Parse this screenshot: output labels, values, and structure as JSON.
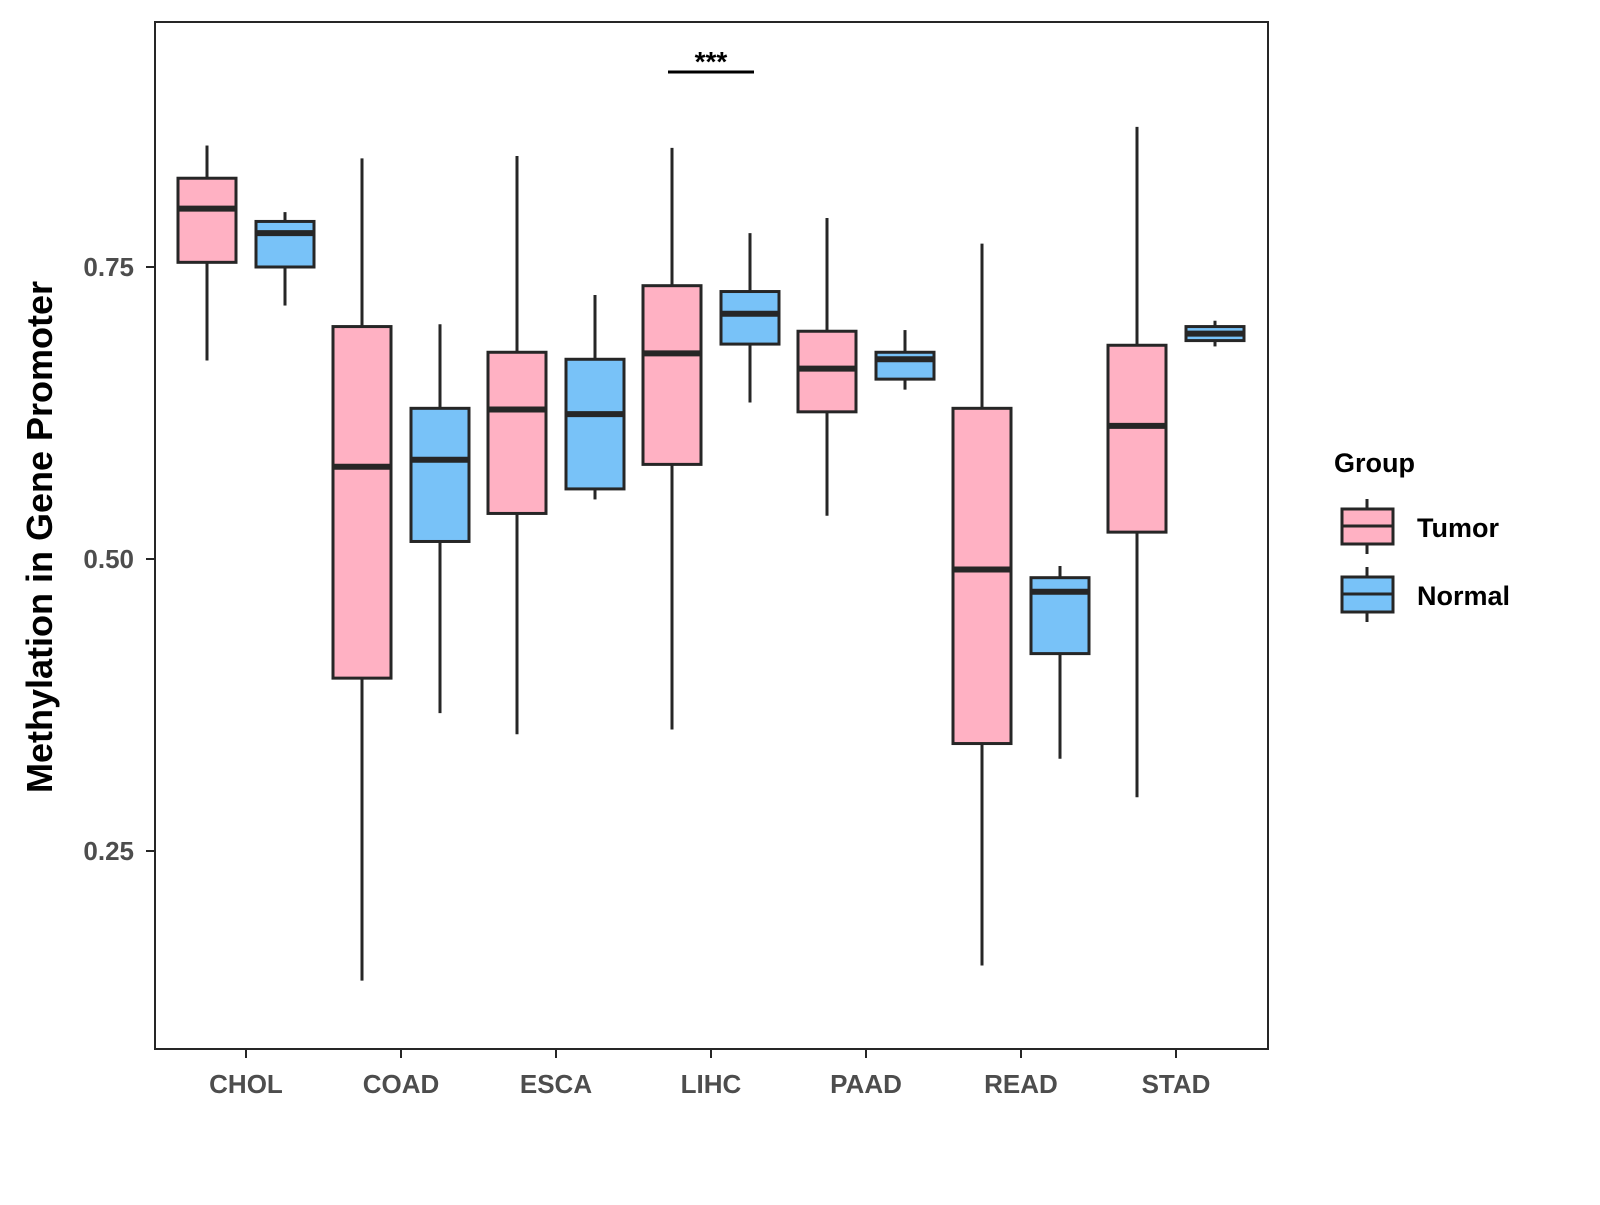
{
  "chart_data": {
    "type": "boxplot",
    "title": "",
    "xlabel": "",
    "ylabel": "Methylation in Gene Promoter",
    "ylim": [
      0.0805,
      0.9598
    ],
    "yticks": [
      0.25,
      0.5,
      0.75
    ],
    "ytick_labels": [
      "0.25",
      "0.50",
      "0.75"
    ],
    "categories": [
      "CHOL",
      "COAD",
      "ESCA",
      "LIHC",
      "PAAD",
      "READ",
      "STAD"
    ],
    "grid": false,
    "legend": {
      "title": "Group",
      "placement": "right",
      "entries": [
        "Tumor",
        "Normal"
      ]
    },
    "colors": {
      "Tumor": "#FFB1C3",
      "Normal": "#78C2F8",
      "outline": "#262626"
    },
    "series": [
      {
        "name": "Tumor",
        "boxes": [
          {
            "min": 0.67,
            "q1": 0.754,
            "median": 0.8,
            "q3": 0.826,
            "max": 0.854
          },
          {
            "min": 0.139,
            "q1": 0.398,
            "median": 0.579,
            "q3": 0.699,
            "max": 0.843
          },
          {
            "min": 0.35,
            "q1": 0.539,
            "median": 0.628,
            "q3": 0.677,
            "max": 0.845
          },
          {
            "min": 0.354,
            "q1": 0.581,
            "median": 0.676,
            "q3": 0.734,
            "max": 0.852
          },
          {
            "min": 0.537,
            "q1": 0.626,
            "median": 0.663,
            "q3": 0.695,
            "max": 0.792
          },
          {
            "min": 0.152,
            "q1": 0.342,
            "median": 0.491,
            "q3": 0.629,
            "max": 0.77
          },
          {
            "min": 0.296,
            "q1": 0.523,
            "median": 0.614,
            "q3": 0.683,
            "max": 0.87
          }
        ]
      },
      {
        "name": "Normal",
        "boxes": [
          {
            "min": 0.717,
            "q1": 0.75,
            "median": 0.779,
            "q3": 0.789,
            "max": 0.797
          },
          {
            "min": 0.368,
            "q1": 0.515,
            "median": 0.585,
            "q3": 0.629,
            "max": 0.701
          },
          {
            "min": 0.551,
            "q1": 0.56,
            "median": 0.624,
            "q3": 0.671,
            "max": 0.726
          },
          {
            "min": 0.634,
            "q1": 0.684,
            "median": 0.71,
            "q3": 0.729,
            "max": 0.779
          },
          {
            "min": 0.645,
            "q1": 0.654,
            "median": 0.671,
            "q3": 0.677,
            "max": 0.696
          },
          {
            "min": 0.329,
            "q1": 0.419,
            "median": 0.472,
            "q3": 0.484,
            "max": 0.494
          },
          {
            "min": 0.682,
            "q1": 0.687,
            "median": 0.693,
            "q3": 0.699,
            "max": 0.704
          }
        ]
      }
    ],
    "annotations": [
      {
        "category": "LIHC",
        "text": "***",
        "y": 0.917
      }
    ]
  }
}
